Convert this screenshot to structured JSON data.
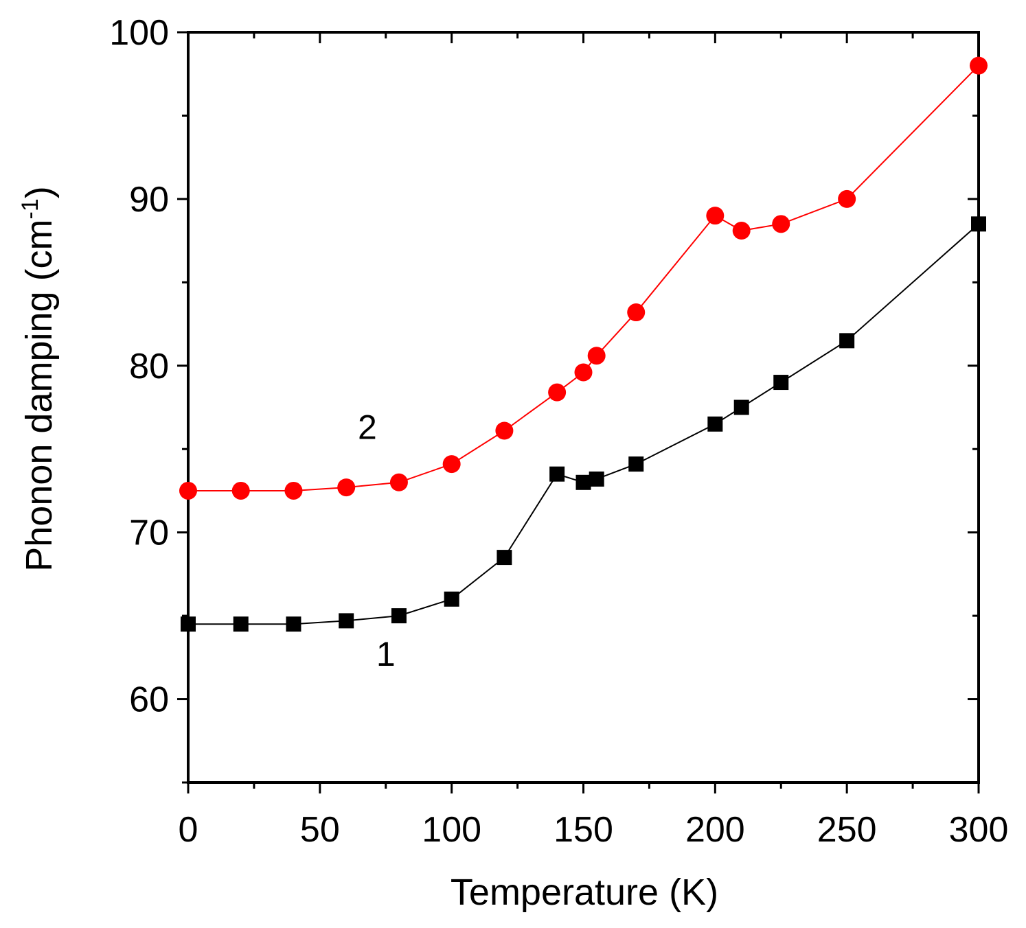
{
  "chart_data": {
    "type": "line",
    "title": "",
    "xlabel": "Temperature (K)",
    "ylabel": "Phonon damping (cm",
    "ylabel_superscript": "-1",
    "ylabel_close": ")",
    "xlim": [
      0,
      300
    ],
    "ylim": [
      55,
      100
    ],
    "xticks": [
      0,
      50,
      100,
      150,
      200,
      250,
      300
    ],
    "yticks": [
      60,
      70,
      80,
      90,
      100
    ],
    "xtick_labels": [
      "0",
      "50",
      "100",
      "150",
      "200",
      "250",
      "300"
    ],
    "ytick_labels": [
      "60",
      "70",
      "80",
      "90",
      "100"
    ],
    "grid": false,
    "series": [
      {
        "name": "1",
        "color": "#000000",
        "marker": "square",
        "x": [
          0,
          20,
          40,
          60,
          80,
          100,
          120,
          140,
          150,
          155,
          170,
          200,
          210,
          225,
          250,
          300
        ],
        "values": [
          64.5,
          64.5,
          64.5,
          64.7,
          65.0,
          66.0,
          68.5,
          73.5,
          73.0,
          73.2,
          74.1,
          76.5,
          77.5,
          79.0,
          81.5,
          88.5
        ]
      },
      {
        "name": "2",
        "color": "#ff0000",
        "marker": "circle",
        "x": [
          0,
          20,
          40,
          60,
          80,
          100,
          120,
          140,
          150,
          155,
          170,
          200,
          210,
          225,
          250,
          300
        ],
        "values": [
          72.5,
          72.5,
          72.5,
          72.7,
          73.0,
          74.1,
          76.1,
          78.4,
          79.6,
          80.6,
          83.2,
          89.0,
          88.1,
          88.5,
          90.0,
          98.0
        ]
      }
    ],
    "annotations": [
      {
        "text": "2",
        "x": 68,
        "y": 75.6
      },
      {
        "text": "1",
        "x": 75,
        "y": 62.0
      }
    ]
  }
}
